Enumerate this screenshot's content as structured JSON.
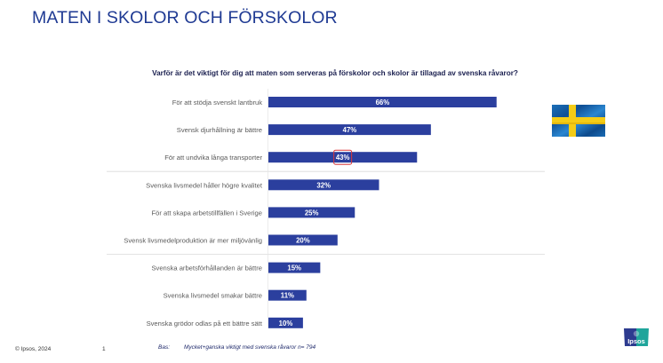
{
  "slide": {
    "title": "MATEN I SKOLOR OCH FÖRSKOLOR",
    "question": "Varför är det viktigt för dig att maten som serveras på förskolor och skolor är tillagad av svenska råvaror?",
    "footer": {
      "copyright": "© Ipsos, 2024",
      "page_number": "1",
      "base_label": "Bas:",
      "base_text": "Mycket+ganska viktigt med svenska råvaror n= 794"
    },
    "logo_text": "Ipsos",
    "flag_icon": "sweden-flag",
    "colors": {
      "title": "#1f3a93",
      "bar": "#2b3f9e",
      "highlight_box": "#d9383a",
      "logo_left": "#2d3b8f",
      "logo_right": "#1fa59b"
    }
  },
  "chart_data": {
    "type": "bar",
    "orientation": "horizontal",
    "title": "Varför är det viktigt för dig att maten som serveras på förskolor och skolor är tillagad av svenska råvaror?",
    "xlabel": "",
    "ylabel": "",
    "xlim": [
      0,
      100
    ],
    "grid": false,
    "legend": "none",
    "categories": [
      "För att stödja svenskt lantbruk",
      "Svensk djurhållning är bättre",
      "För att undvika långa transporter",
      "Svenska livsmedel håller högre kvalitet",
      "För att skapa arbetstillfällen i Sverige",
      "Svensk livsmedelproduktion är mer miljövänlig",
      "Svenska arbetsförhållanden är bättre",
      "Svenska livsmedel smakar bättre",
      "Svenska grödor odlas på ett bättre sätt"
    ],
    "values": [
      66,
      47,
      43,
      32,
      25,
      20,
      15,
      11,
      10
    ],
    "value_labels": [
      "66%",
      "47%",
      "43%",
      "32%",
      "25%",
      "20%",
      "15%",
      "11%",
      "10%"
    ],
    "group_separators_after_index": [
      2,
      5
    ],
    "highlighted_label_index": 2
  }
}
